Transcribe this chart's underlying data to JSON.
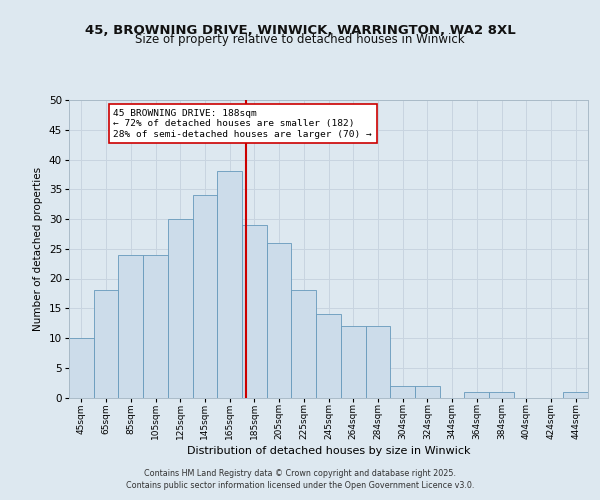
{
  "title1": "45, BROWNING DRIVE, WINWICK, WARRINGTON, WA2 8XL",
  "title2": "Size of property relative to detached houses in Winwick",
  "xlabel": "Distribution of detached houses by size in Winwick",
  "ylabel": "Number of detached properties",
  "bin_labels": [
    "45sqm",
    "65sqm",
    "85sqm",
    "105sqm",
    "125sqm",
    "145sqm",
    "165sqm",
    "185sqm",
    "205sqm",
    "225sqm",
    "245sqm",
    "264sqm",
    "284sqm",
    "304sqm",
    "324sqm",
    "344sqm",
    "364sqm",
    "384sqm",
    "404sqm",
    "424sqm",
    "444sqm"
  ],
  "values": [
    10,
    18,
    24,
    24,
    30,
    34,
    38,
    29,
    26,
    18,
    14,
    12,
    12,
    2,
    2,
    0,
    1,
    1,
    0,
    0,
    1
  ],
  "bar_color": "#ccdcea",
  "bar_edge_color": "#6699bb",
  "grid_color": "#c8d4e0",
  "vline_color": "#cc0000",
  "annotation_text": "45 BROWNING DRIVE: 188sqm\n← 72% of detached houses are smaller (182)\n28% of semi-detached houses are larger (70) →",
  "annotation_box_color": "#ffffff",
  "annotation_box_edge": "#cc0000",
  "ylim": [
    0,
    50
  ],
  "yticks": [
    0,
    5,
    10,
    15,
    20,
    25,
    30,
    35,
    40,
    45,
    50
  ],
  "bg_color": "#dde8f0",
  "footer_line1": "Contains HM Land Registry data © Crown copyright and database right 2025.",
  "footer_line2": "Contains public sector information licensed under the Open Government Licence v3.0.",
  "title1_fontsize": 9.5,
  "title2_fontsize": 8.5
}
